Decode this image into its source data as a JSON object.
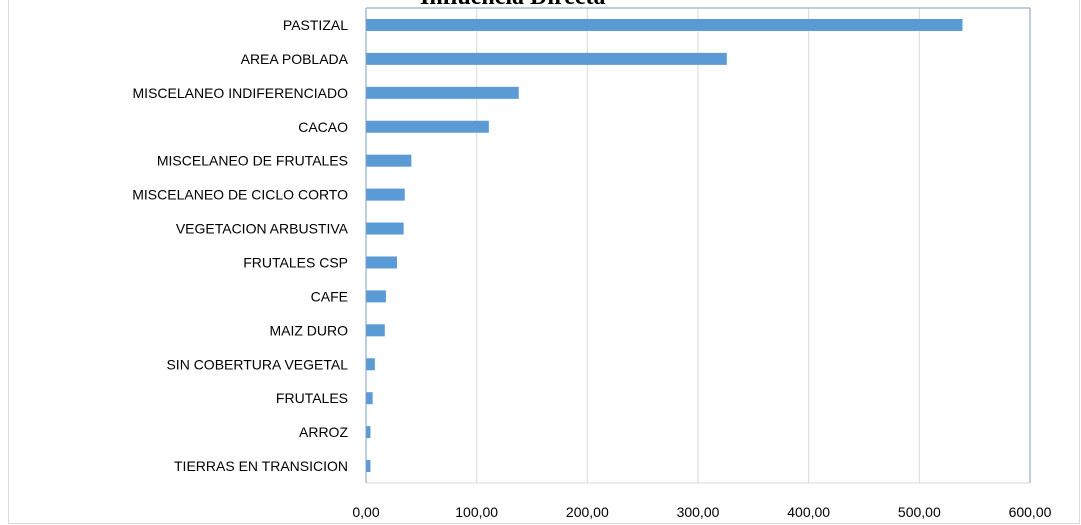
{
  "chart_data": {
    "type": "bar",
    "orientation": "horizontal",
    "title": "Influencia Directa",
    "categories": [
      "PASTIZAL",
      "AREA POBLADA",
      "MISCELANEO INDIFERENCIADO",
      "CACAO",
      "MISCELANEO DE FRUTALES",
      "MISCELANEO DE CICLO CORTO",
      "VEGETACION ARBUSTIVA",
      "FRUTALES CSP",
      "CAFE",
      "MAIZ DURO",
      "SIN COBERTURA VEGETAL",
      "FRUTALES",
      "ARROZ",
      "TIERRAS EN TRANSICION"
    ],
    "values": [
      539,
      326,
      138,
      111,
      41,
      35,
      34,
      28,
      18,
      17,
      8,
      6,
      4,
      4
    ],
    "xlim": [
      0,
      600
    ],
    "xticks": [
      "0,00",
      "100,00",
      "200,00",
      "300,00",
      "400,00",
      "500,00",
      "600,00"
    ],
    "xlabel": "",
    "ylabel": "",
    "grid": "vertical",
    "bar_color": "#5b9bd5"
  }
}
